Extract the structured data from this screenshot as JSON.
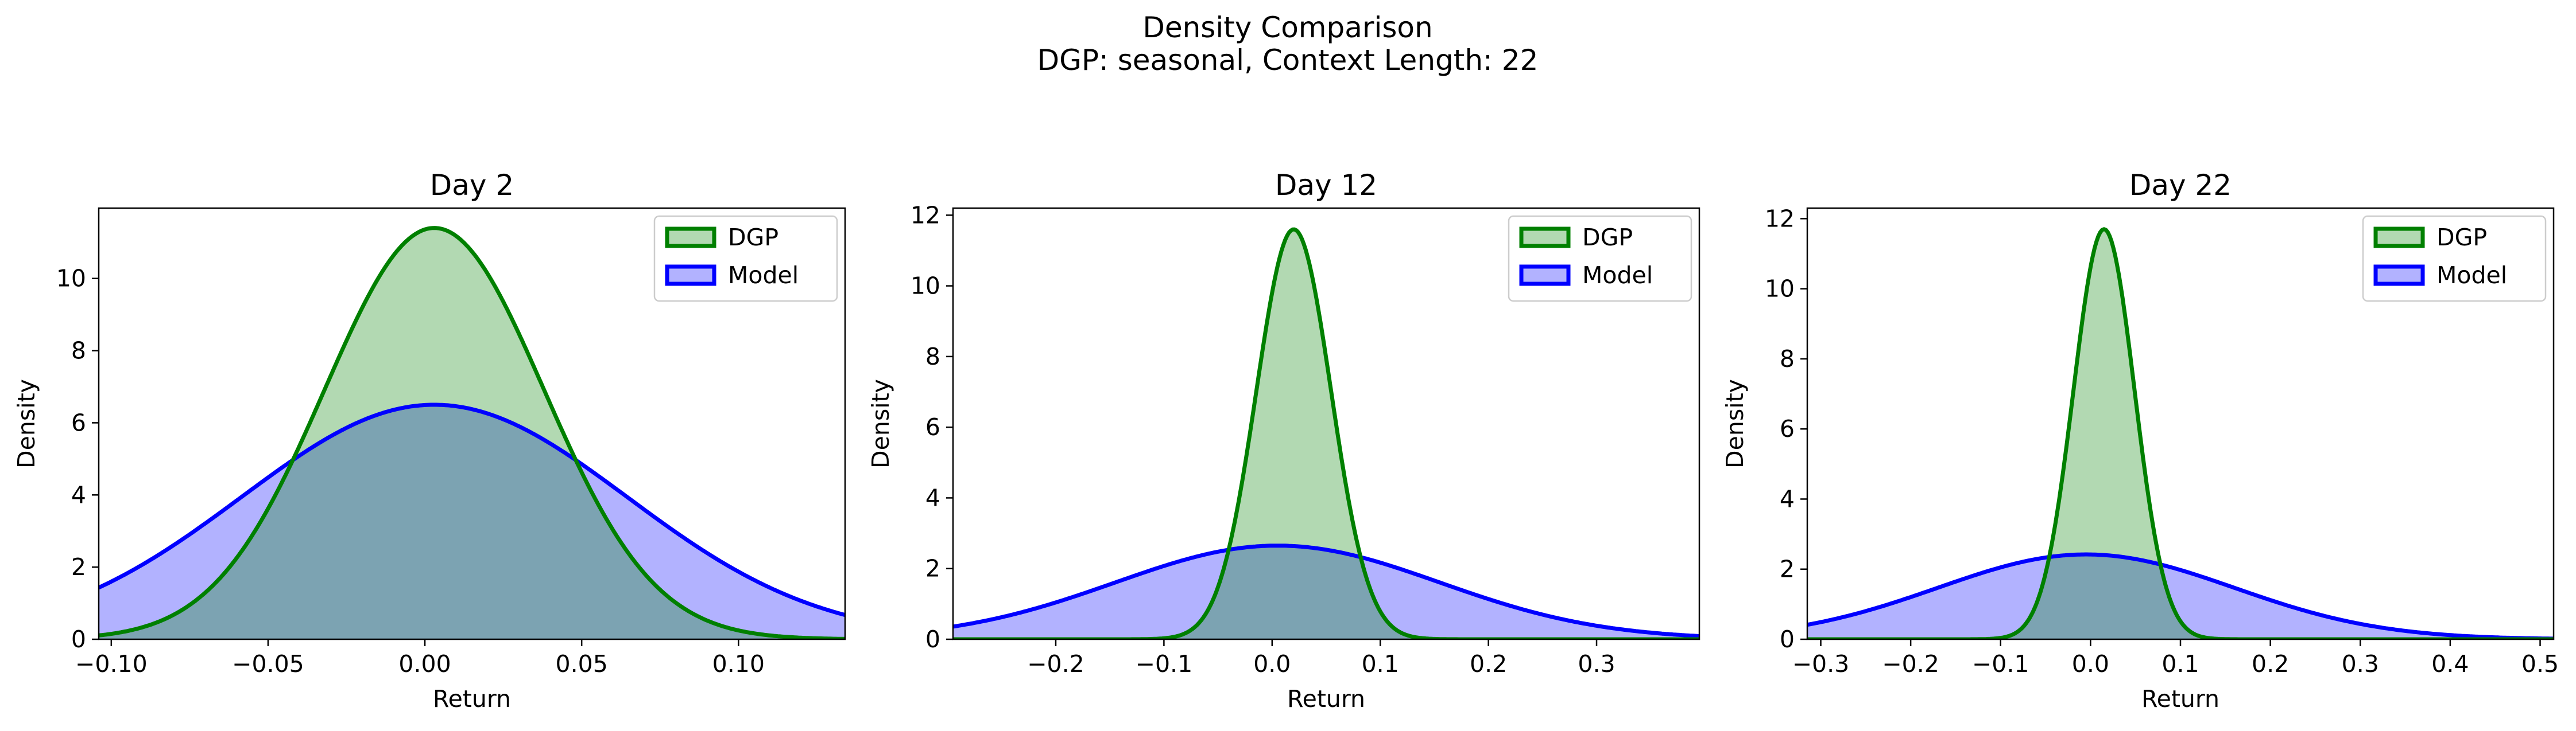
{
  "figure": {
    "title_line1": "Density Comparison",
    "title_line2": "DGP: seasonal, Context Length: 22"
  },
  "colors": {
    "dgp_line": "#008000",
    "dgp_fill": "#b2d8b2",
    "model_line": "#0000ff",
    "model_fill": "#b2b2ff",
    "overlap_fill": "#7f99c9"
  },
  "chart_data": [
    {
      "type": "area",
      "title": "Day 2",
      "xlabel": "Return",
      "ylabel": "Density",
      "xlim": [
        -0.104,
        0.134
      ],
      "ylim": [
        0,
        11.95
      ],
      "xticks": [
        -0.1,
        -0.05,
        0.0,
        0.05,
        0.1
      ],
      "xtick_labels": [
        "−0.10",
        "−0.05",
        "0.00",
        "0.05",
        "0.10"
      ],
      "yticks": [
        0,
        2,
        4,
        6,
        8,
        10
      ],
      "ytick_labels": [
        "0",
        "2",
        "4",
        "6",
        "8",
        "10"
      ],
      "legend": "top-right",
      "series": [
        {
          "name": "DGP",
          "distribution": "normal",
          "mean": 0.003,
          "std": 0.035,
          "peak": 11.4
        },
        {
          "name": "Model",
          "distribution": "normal",
          "mean": 0.003,
          "std": 0.0615,
          "peak": 6.5
        }
      ]
    },
    {
      "type": "area",
      "title": "Day 12",
      "xlabel": "Return",
      "ylabel": "Density",
      "xlim": [
        -0.295,
        0.395
      ],
      "ylim": [
        0,
        12.2
      ],
      "xticks": [
        -0.2,
        -0.1,
        0.0,
        0.1,
        0.2,
        0.3
      ],
      "xtick_labels": [
        "−0.2",
        "−0.1",
        "0.0",
        "0.1",
        "0.2",
        "0.3"
      ],
      "yticks": [
        0,
        2,
        4,
        6,
        8,
        10,
        12
      ],
      "ytick_labels": [
        "0",
        "2",
        "4",
        "6",
        "8",
        "10",
        "12"
      ],
      "legend": "top-right",
      "series": [
        {
          "name": "DGP",
          "distribution": "normal",
          "mean": 0.02,
          "std": 0.0345,
          "peak": 11.6
        },
        {
          "name": "Model",
          "distribution": "normal",
          "mean": 0.005,
          "std": 0.15,
          "peak": 2.65
        }
      ]
    },
    {
      "type": "area",
      "title": "Day 22",
      "xlabel": "Return",
      "ylabel": "Density",
      "xlim": [
        -0.315,
        0.515
      ],
      "ylim": [
        0,
        12.3
      ],
      "xticks": [
        -0.3,
        -0.2,
        -0.1,
        0.0,
        0.1,
        0.2,
        0.3,
        0.4,
        0.5
      ],
      "xtick_labels": [
        "−0.3",
        "−0.2",
        "−0.1",
        "0.0",
        "0.1",
        "0.2",
        "0.3",
        "0.4",
        "0.5"
      ],
      "yticks": [
        0,
        2,
        4,
        6,
        8,
        10,
        12
      ],
      "ytick_labels": [
        "0",
        "2",
        "4",
        "6",
        "8",
        "10",
        "12"
      ],
      "legend": "top-right",
      "series": [
        {
          "name": "DGP",
          "distribution": "normal",
          "mean": 0.015,
          "std": 0.034,
          "peak": 11.7
        },
        {
          "name": "Model",
          "distribution": "normal",
          "mean": -0.005,
          "std": 0.165,
          "peak": 2.42
        }
      ]
    }
  ]
}
